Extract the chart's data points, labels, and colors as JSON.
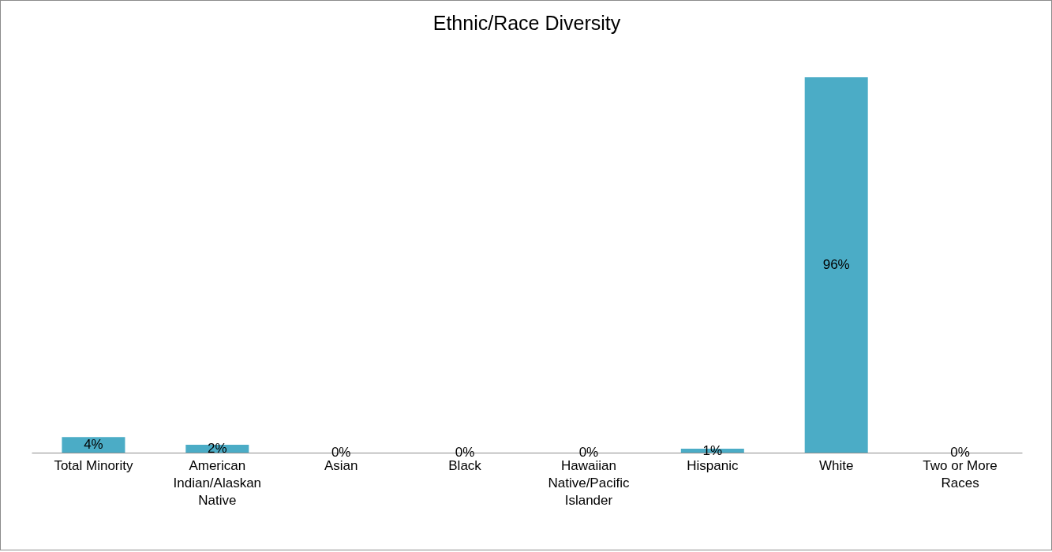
{
  "chart_data": {
    "type": "bar",
    "title": "Ethnic/Race  Diversity",
    "categories": [
      "Total Minority",
      "American Indian/Alaskan Native",
      "Asian",
      "Black",
      "Hawaiian Native/Pacific Islander",
      "Hispanic",
      "White",
      "Two or More Races"
    ],
    "values": [
      4,
      2,
      0,
      0,
      0,
      1,
      96,
      0
    ],
    "value_labels": [
      "4%",
      "2%",
      "0%",
      "0%",
      "0%",
      "1%",
      "96%",
      "0%"
    ],
    "color": "#4bacc6"
  }
}
